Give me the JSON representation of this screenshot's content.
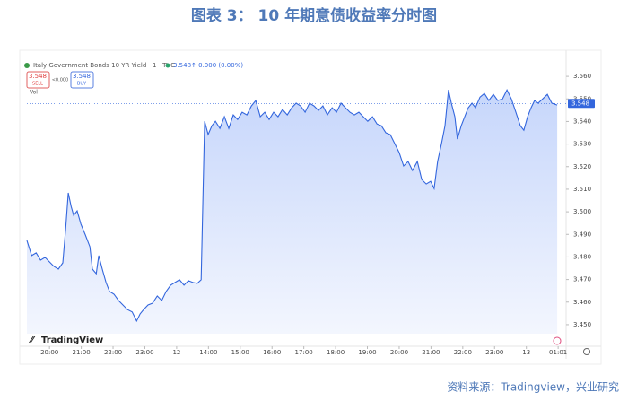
{
  "chart_data": {
    "type": "line",
    "title": "图表 3： 10 年期意债收益率分时图",
    "source": "资料来源：Tradingview，兴业研究",
    "symbol": "Italy Government Bonds 10 YR Yield · 1 · TVC",
    "quote": "3.548↑ 0.000 (0.00%)",
    "sell_price": "3.548",
    "sell_label": "SELL",
    "spread": "<0.000",
    "buy_price": "3.548",
    "buy_label": "BUY",
    "volume_label": "Vol",
    "brand": "TradingView",
    "last_price": 3.548,
    "color": "#3366dd",
    "fill_color": "#c9d8fb",
    "xlim": [
      -0.71,
      16.25
    ],
    "ylim": [
      3.446,
      3.566
    ],
    "xticks": [
      {
        "value": 0,
        "label": "20:00"
      },
      {
        "value": 1,
        "label": "21:00"
      },
      {
        "value": 2,
        "label": "22:00"
      },
      {
        "value": 3,
        "label": "23:00"
      },
      {
        "value": 4,
        "label": "12"
      },
      {
        "value": 5,
        "label": "14:00"
      },
      {
        "value": 6,
        "label": "15:00"
      },
      {
        "value": 7,
        "label": "16:00"
      },
      {
        "value": 8,
        "label": "17:00"
      },
      {
        "value": 9,
        "label": "18:00"
      },
      {
        "value": 10,
        "label": "19:00"
      },
      {
        "value": 11,
        "label": "20:00"
      },
      {
        "value": 12,
        "label": "21:00"
      },
      {
        "value": 13,
        "label": "22:00"
      },
      {
        "value": 14,
        "label": "23:00"
      },
      {
        "value": 15,
        "label": "13"
      },
      {
        "value": 16,
        "label": "01:01"
      }
    ],
    "yticks": [
      {
        "value": 3.45,
        "label": "3.450"
      },
      {
        "value": 3.46,
        "label": "3.460"
      },
      {
        "value": 3.47,
        "label": "3.470"
      },
      {
        "value": 3.48,
        "label": "3.480"
      },
      {
        "value": 3.49,
        "label": "3.490"
      },
      {
        "value": 3.5,
        "label": "3.500"
      },
      {
        "value": 3.51,
        "label": "3.510"
      },
      {
        "value": 3.52,
        "label": "3.520"
      },
      {
        "value": 3.53,
        "label": "3.530"
      },
      {
        "value": 3.54,
        "label": "3.540"
      },
      {
        "value": 3.55,
        "label": "3.550"
      },
      {
        "value": 3.56,
        "label": "3.560"
      }
    ],
    "x": [
      -0.71,
      -0.56,
      -0.42,
      -0.28,
      -0.14,
      0,
      0.14,
      0.28,
      0.42,
      0.51,
      0.59,
      0.68,
      0.76,
      0.87,
      0.99,
      1.13,
      1.27,
      1.35,
      1.47,
      1.55,
      1.66,
      1.78,
      1.89,
      2.03,
      2.17,
      2.31,
      2.45,
      2.6,
      2.74,
      2.85,
      2.96,
      3.1,
      3.24,
      3.39,
      3.53,
      3.67,
      3.81,
      3.95,
      4.09,
      4.23,
      4.37,
      4.51,
      4.65,
      4.77,
      4.88,
      4.99,
      5.11,
      5.22,
      5.36,
      5.5,
      5.64,
      5.78,
      5.92,
      6.06,
      6.21,
      6.35,
      6.49,
      6.63,
      6.77,
      6.91,
      7.05,
      7.19,
      7.33,
      7.48,
      7.62,
      7.76,
      7.9,
      8.04,
      8.18,
      8.32,
      8.46,
      8.6,
      8.74,
      8.89,
      9.03,
      9.17,
      9.31,
      9.45,
      9.59,
      9.73,
      9.87,
      10.01,
      10.16,
      10.3,
      10.44,
      10.58,
      10.72,
      10.86,
      11,
      11.14,
      11.28,
      11.42,
      11.57,
      11.71,
      11.85,
      11.99,
      12.1,
      12.21,
      12.33,
      12.44,
      12.55,
      12.64,
      12.75,
      12.83,
      12.95,
      13.06,
      13.17,
      13.29,
      13.4,
      13.54,
      13.68,
      13.82,
      13.96,
      14.1,
      14.25,
      14.39,
      14.53,
      14.67,
      14.81,
      14.92,
      15.04,
      15.15,
      15.26,
      15.37,
      15.51,
      15.66,
      15.8,
      15.97
    ],
    "values": [
      3.4873,
      3.4806,
      3.4818,
      3.4786,
      3.4798,
      3.4778,
      3.4758,
      3.4746,
      3.4774,
      3.4925,
      3.5084,
      3.5024,
      3.4984,
      3.5004,
      3.4945,
      3.4897,
      3.4845,
      3.4746,
      3.4726,
      3.4806,
      3.4746,
      3.4687,
      3.4647,
      3.4635,
      3.4607,
      3.4587,
      3.4567,
      3.4556,
      3.4516,
      3.4548,
      3.4567,
      3.4587,
      3.4595,
      3.4627,
      3.4607,
      3.4647,
      3.4675,
      3.4687,
      3.4699,
      3.4675,
      3.4695,
      3.4687,
      3.4683,
      3.4699,
      3.5401,
      3.5342,
      3.5381,
      3.5401,
      3.5369,
      3.5421,
      3.5369,
      3.5429,
      3.5409,
      3.5441,
      3.5429,
      3.5469,
      3.5493,
      3.5421,
      3.5441,
      3.5409,
      3.5441,
      3.5421,
      3.5453,
      3.5429,
      3.5461,
      3.5481,
      3.5469,
      3.5441,
      3.5481,
      3.5469,
      3.5449,
      3.5469,
      3.5429,
      3.5461,
      3.5441,
      3.5481,
      3.5461,
      3.5441,
      3.5429,
      3.5441,
      3.5421,
      3.5401,
      3.5421,
      3.5389,
      3.5381,
      3.535,
      3.5342,
      3.5302,
      3.5262,
      3.5203,
      3.5223,
      3.5183,
      3.5223,
      3.5143,
      3.5123,
      3.5135,
      3.5103,
      3.5223,
      3.5302,
      3.5381,
      3.554,
      3.5481,
      3.5421,
      3.5322,
      3.5381,
      3.5421,
      3.5461,
      3.5481,
      3.5461,
      3.5508,
      3.5524,
      3.5493,
      3.552,
      3.5493,
      3.55,
      3.554,
      3.55,
      3.5441,
      3.5381,
      3.5361,
      3.5421,
      3.5461,
      3.5493,
      3.5481,
      3.55,
      3.552,
      3.5481,
      3.5473
    ]
  }
}
